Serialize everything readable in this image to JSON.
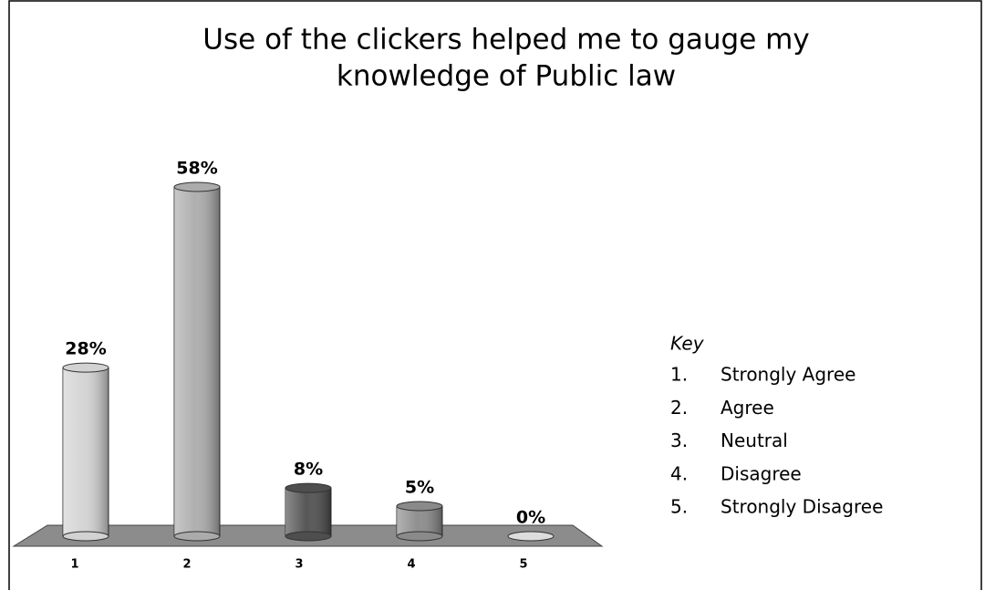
{
  "chart_data": {
    "type": "bar",
    "title": [
      "Use of the clickers helped me to gauge my",
      "knowledge of Public law"
    ],
    "categories": [
      "1",
      "2",
      "3",
      "4",
      "5"
    ],
    "values": [
      28,
      58,
      8,
      5,
      0
    ],
    "value_labels": [
      "28%",
      "58%",
      "8%",
      "5%",
      "0%"
    ],
    "colors": [
      "#d2d2d2",
      "#ababab",
      "#4e4e4e",
      "#8a8a8a",
      "#dddddd"
    ],
    "key_title": "Key",
    "key": [
      {
        "number": "1.",
        "label": "Strongly Agree"
      },
      {
        "number": "2.",
        "label": "Agree"
      },
      {
        "number": "3.",
        "label": "Neutral"
      },
      {
        "number": "4.",
        "label": "Disagree"
      },
      {
        "number": "5.",
        "label": "Strongly Disagree"
      }
    ]
  }
}
